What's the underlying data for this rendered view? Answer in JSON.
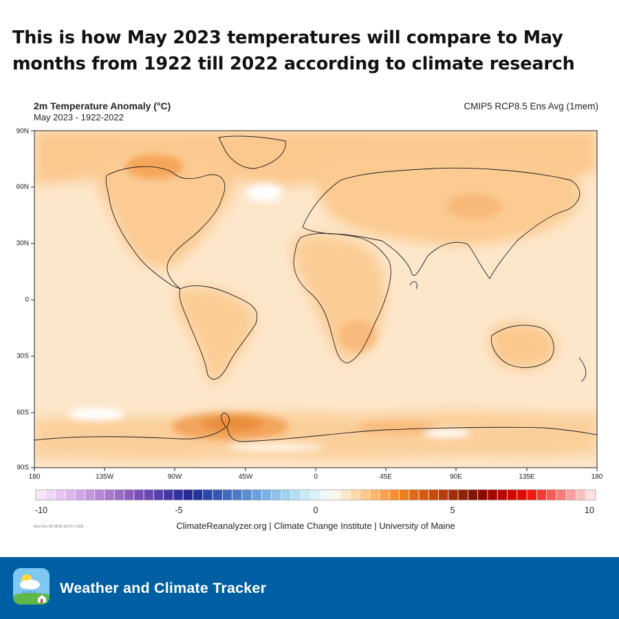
{
  "headline": "This is how May 2023 temperatures will compare to May months from 1922 till 2022 according to climate research",
  "map": {
    "title": "2m Temperature Anomaly (°C)",
    "subtitle": "May 2023 - 1922-2022",
    "model": "CMIP5 RCP8.5 Ens Avg (1mem)",
    "lat_labels": [
      "90N",
      "60N",
      "30N",
      "0",
      "30S",
      "60S",
      "90S"
    ],
    "lon_labels": [
      "180",
      "135W",
      "90W",
      "45W",
      "0",
      "45E",
      "90E",
      "135E",
      "180"
    ]
  },
  "colorbar": {
    "labels": [
      "-10",
      "-5",
      "0",
      "5",
      "10"
    ],
    "min": -10,
    "max": 10,
    "colors": [
      "#f6e6f6",
      "#efd6f3",
      "#e6c6f0",
      "#dcb6ec",
      "#d1a6e6",
      "#c596df",
      "#b886d6",
      "#aa78cf",
      "#9a6bc7",
      "#8a5dbf",
      "#7a50b8",
      "#6a48b3",
      "#5640ab",
      "#4337a4",
      "#33319d",
      "#272b97",
      "#21369d",
      "#2a46aa",
      "#3558b6",
      "#4169c0",
      "#4d7bc9",
      "#5b8dd2",
      "#6a9fdb",
      "#7bb1e3",
      "#8ec2ea",
      "#a2d1ef",
      "#b5def4",
      "#c9e9f7",
      "#dbf1fa",
      "#ebf7fc",
      "#fff6e8",
      "#fee8cc",
      "#fdd9ab",
      "#fdc88a",
      "#fcb76b",
      "#fba24d",
      "#f98f33",
      "#ef7c1d",
      "#e46a14",
      "#d85a0f",
      "#c94b0b",
      "#b73c08",
      "#a52e06",
      "#922104",
      "#7f1502",
      "#8d0800",
      "#a50500",
      "#bb0600",
      "#d10800",
      "#e30a00",
      "#f01a10",
      "#f53a30",
      "#f85c55",
      "#fa7d79",
      "#fc9f9c",
      "#fdbfbd",
      "#fee0df"
    ]
  },
  "timestamp": "Wed Dec 28 08:58:18 UTC 2022",
  "credit": "ClimateReanalyzer.org | Climate Change Institute | University of Maine",
  "footer": {
    "brand": "Weather and Climate Tracker"
  }
}
